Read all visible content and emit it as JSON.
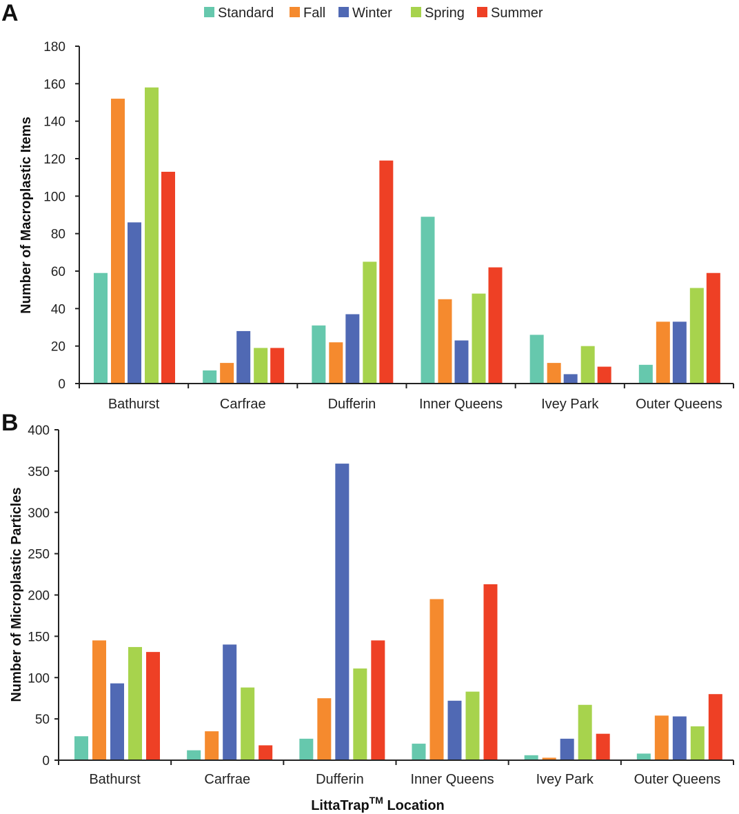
{
  "colors": {
    "Standard": "#66c8ad",
    "Fall": "#f58a2e",
    "Winter": "#5069b4",
    "Spring": "#a7d34d",
    "Summer": "#ee4025"
  },
  "legend": [
    "Standard",
    "Fall",
    "Winter",
    "Spring",
    "Summer"
  ],
  "shared_xlabel_main": "LittaTrap",
  "shared_xlabel_sup": "TM",
  "shared_xlabel_rest": " Location",
  "chart_data": [
    {
      "panel": "A",
      "type": "bar",
      "title": "",
      "ylabel": "Number of Macroplastic Items",
      "xlabel": "",
      "ylim": [
        0,
        180
      ],
      "yticks": [
        0,
        20,
        40,
        60,
        80,
        100,
        120,
        140,
        160,
        180
      ],
      "categories": [
        "Bathurst",
        "Carfrae",
        "Dufferin",
        "Inner Queens",
        "Ivey Park",
        "Outer Queens"
      ],
      "series": [
        {
          "name": "Standard",
          "values": [
            59,
            7,
            31,
            89,
            26,
            10
          ]
        },
        {
          "name": "Fall",
          "values": [
            152,
            11,
            22,
            45,
            11,
            33
          ]
        },
        {
          "name": "Winter",
          "values": [
            86,
            28,
            37,
            23,
            5,
            33
          ]
        },
        {
          "name": "Spring",
          "values": [
            158,
            19,
            65,
            48,
            20,
            51
          ]
        },
        {
          "name": "Summer",
          "values": [
            113,
            19,
            119,
            62,
            9,
            59
          ]
        }
      ]
    },
    {
      "panel": "B",
      "type": "bar",
      "title": "",
      "ylabel": "Number of Microplastic Particles",
      "xlabel": "LittaTrapTM Location",
      "ylim": [
        0,
        400
      ],
      "yticks": [
        0,
        50,
        100,
        150,
        200,
        250,
        300,
        350,
        400
      ],
      "categories": [
        "Bathurst",
        "Carfrae",
        "Dufferin",
        "Inner Queens",
        "Ivey Park",
        "Outer Queens"
      ],
      "series": [
        {
          "name": "Standard",
          "values": [
            29,
            12,
            26,
            20,
            6,
            8
          ]
        },
        {
          "name": "Fall",
          "values": [
            145,
            35,
            75,
            195,
            3,
            54
          ]
        },
        {
          "name": "Winter",
          "values": [
            93,
            140,
            359,
            72,
            26,
            53
          ]
        },
        {
          "name": "Spring",
          "values": [
            137,
            88,
            111,
            83,
            67,
            41
          ]
        },
        {
          "name": "Summer",
          "values": [
            131,
            18,
            145,
            213,
            32,
            80
          ]
        }
      ]
    }
  ]
}
